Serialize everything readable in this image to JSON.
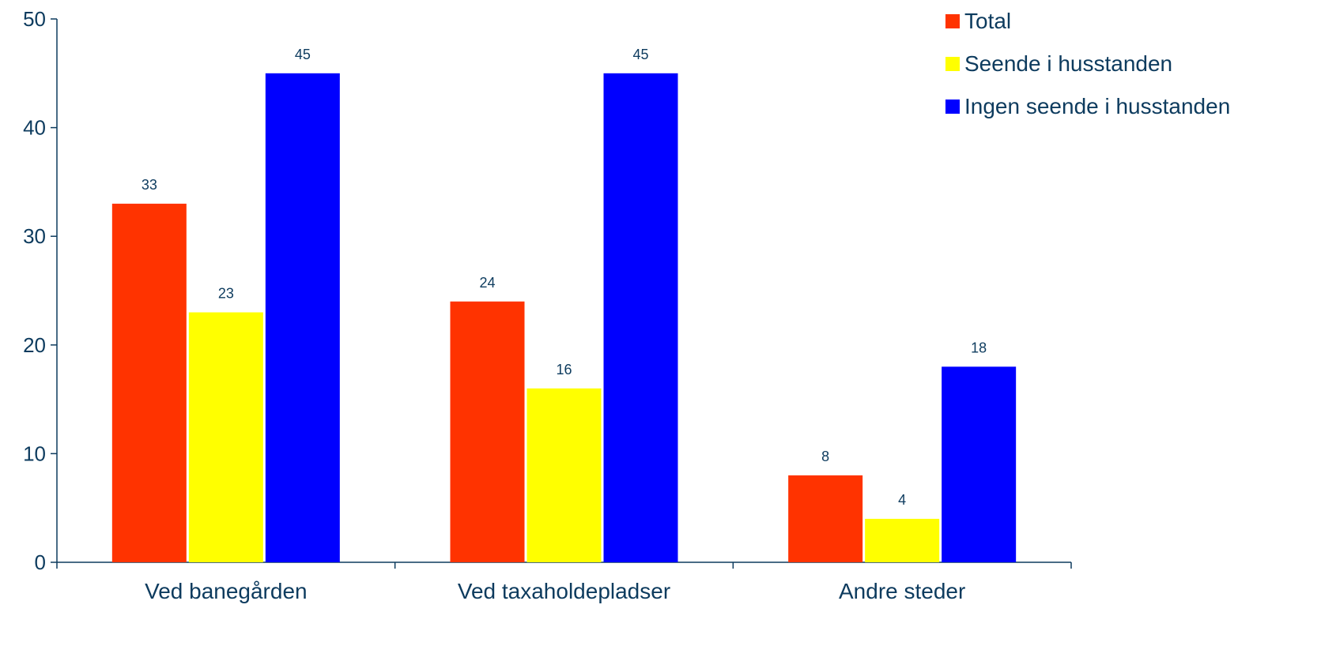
{
  "chart_data": {
    "type": "bar",
    "title": "",
    "xlabel": "",
    "ylabel": "",
    "ylim": [
      0,
      50
    ],
    "yticks": [
      0,
      10,
      20,
      30,
      40,
      50
    ],
    "grid": false,
    "legend_position": "top-right",
    "categories": [
      "Ved banegården",
      "Ved taxaholdepladser",
      "Andre steder"
    ],
    "series": [
      {
        "name": "Total",
        "color": "#ff3300",
        "values": [
          33,
          24,
          8
        ]
      },
      {
        "name": "Seende i husstanden",
        "color": "#ffff00",
        "values": [
          23,
          16,
          4
        ]
      },
      {
        "name": "Ingen seende i husstanden",
        "color": "#0000ff",
        "values": [
          45,
          45,
          18
        ]
      }
    ]
  }
}
